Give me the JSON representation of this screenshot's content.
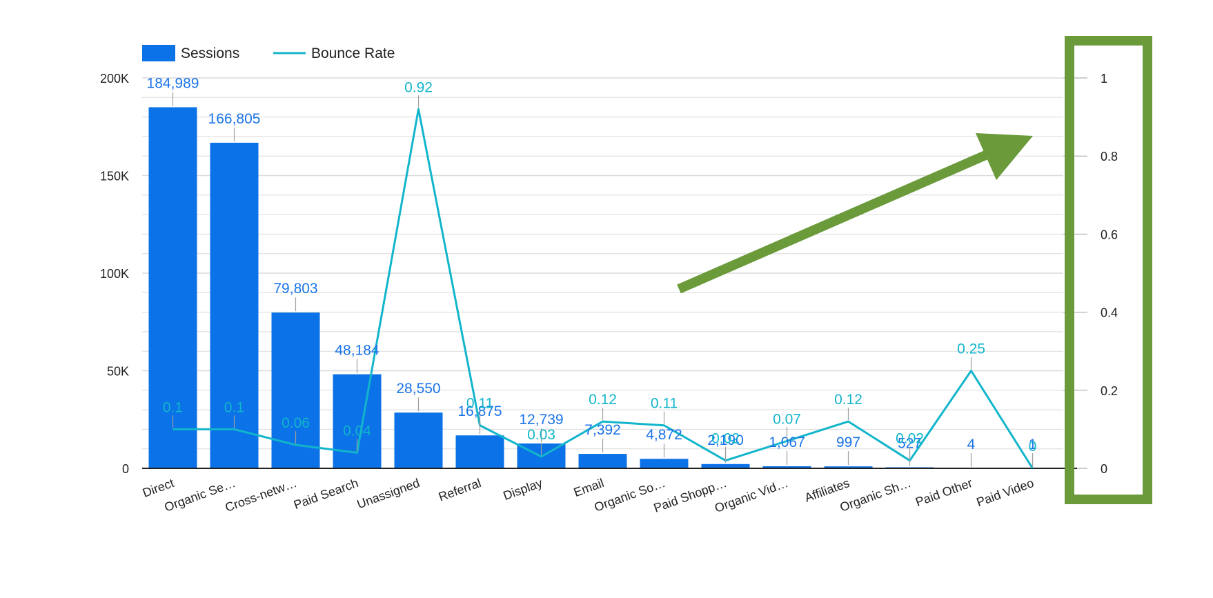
{
  "chart_data": {
    "type": "bar",
    "categories": [
      "Direct",
      "Organic Se…",
      "Cross-netw…",
      "Paid Search",
      "Unassigned",
      "Referral",
      "Display",
      "Email",
      "Organic So…",
      "Paid Shopp…",
      "Organic Vid…",
      "Affiliates",
      "Organic Sh…",
      "Paid Other",
      "Paid Video"
    ],
    "series": [
      {
        "name": "Sessions",
        "type": "bar",
        "axis": "left",
        "values": [
          184989,
          166805,
          79803,
          48184,
          28550,
          16875,
          12739,
          7392,
          4872,
          2190,
          1067,
          997,
          527,
          4,
          1
        ],
        "labels": [
          "184,989",
          "166,805",
          "79,803",
          "48,184",
          "28,550",
          "16,875",
          "12,739",
          "7,392",
          "4,872",
          "2,190",
          "1,067",
          "997",
          "527",
          "4",
          "1"
        ]
      },
      {
        "name": "Bounce Rate",
        "type": "line",
        "axis": "right",
        "values": [
          0.1,
          0.1,
          0.06,
          0.04,
          0.92,
          0.11,
          0.03,
          0.12,
          0.11,
          0.02,
          0.07,
          0.12,
          0.02,
          0.25,
          0
        ],
        "labels": [
          "0.1",
          "0.1",
          "0.06",
          "0.04",
          "0.92",
          "0.11",
          "0.03",
          "0.12",
          "0.11",
          "0.02",
          "0.07",
          "0.12",
          "0.02",
          "0.25",
          "0"
        ]
      }
    ],
    "y_left": {
      "range": [
        0,
        200000
      ],
      "ticks": [
        0,
        50000,
        100000,
        150000,
        200000
      ],
      "tick_labels": [
        "0",
        "50K",
        "100K",
        "150K",
        "200K"
      ]
    },
    "y_right": {
      "range": [
        0,
        1
      ],
      "ticks": [
        0,
        0.2,
        0.4,
        0.6,
        0.8,
        1
      ],
      "tick_labels": [
        "0",
        "0.2",
        "0.4",
        "0.6",
        "0.8",
        "1"
      ]
    },
    "legend": {
      "position": "top-left",
      "entries": [
        "Sessions",
        "Bounce Rate"
      ]
    },
    "grid": true,
    "colors": {
      "bar": "#0b72e7",
      "bar_label": "#1a73e8",
      "line": "#12b5cb",
      "annotation": "#6a9a3a",
      "gridline": "#dadada",
      "axis": "#222222"
    },
    "annotations": [
      {
        "kind": "arrow",
        "color": "#6a9a3a",
        "points_to": "right-axis"
      },
      {
        "kind": "highlight-box",
        "color": "#6a9a3a",
        "target": "right-axis"
      }
    ]
  }
}
